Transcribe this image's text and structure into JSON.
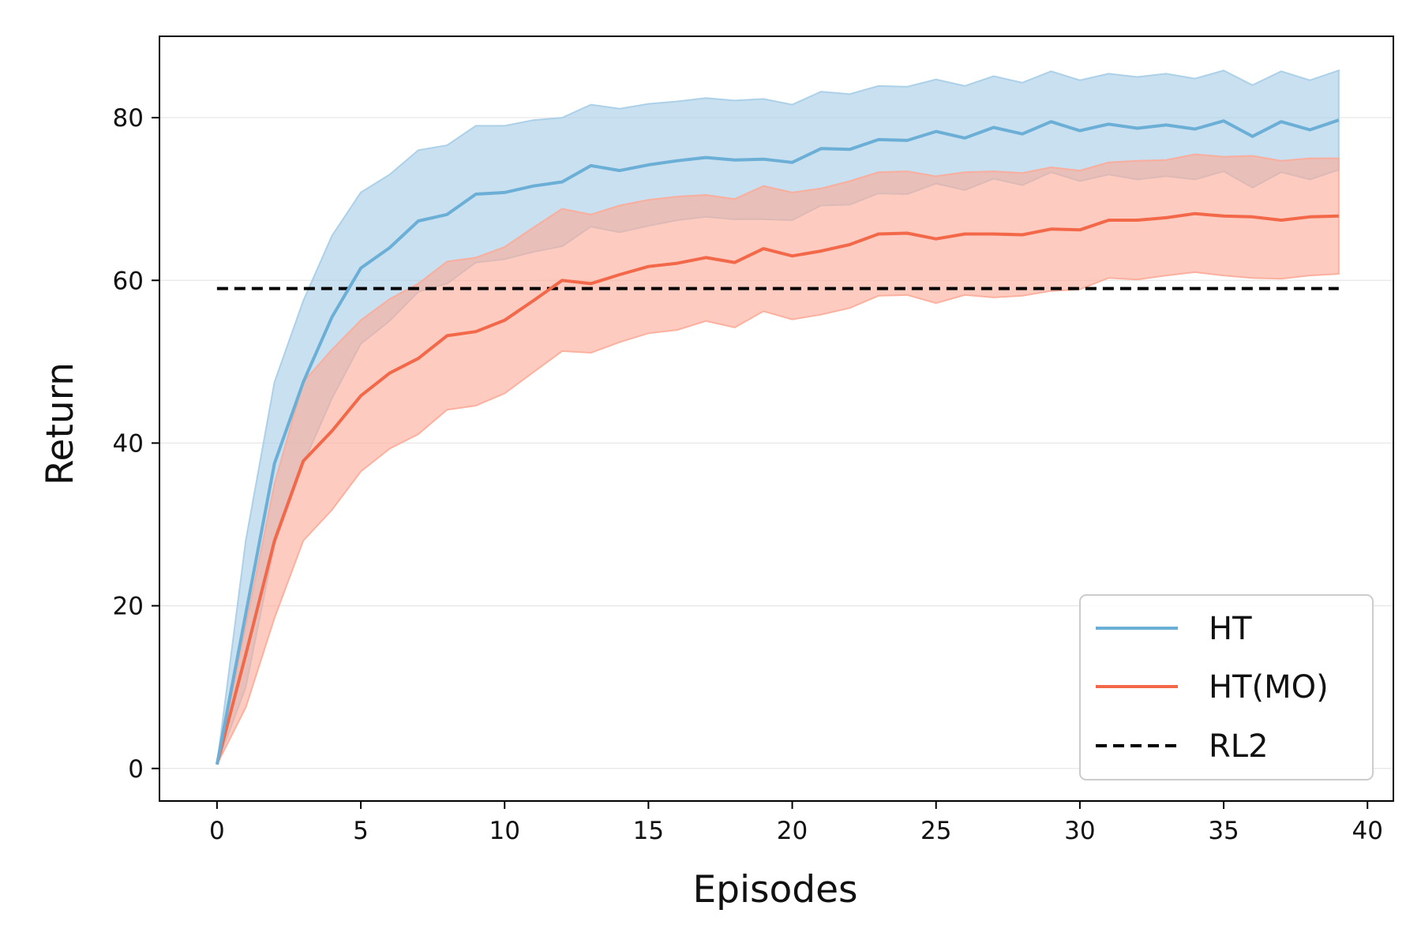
{
  "chart_data": {
    "type": "line",
    "title": "",
    "xlabel": "Episodes",
    "ylabel": "Return",
    "xlim": [
      -2,
      40.9
    ],
    "ylim": [
      -4,
      90
    ],
    "xticks": [
      0,
      5,
      10,
      15,
      20,
      25,
      30,
      35,
      40
    ],
    "yticks": [
      0,
      20,
      40,
      60,
      80
    ],
    "grid": "horizontal, faint",
    "legend_position": "bottom-right",
    "x": [
      0,
      1,
      2,
      3,
      4,
      5,
      6,
      7,
      8,
      9,
      10,
      11,
      12,
      13,
      14,
      15,
      16,
      17,
      18,
      19,
      20,
      21,
      22,
      23,
      24,
      25,
      26,
      27,
      28,
      29,
      30,
      31,
      32,
      33,
      34,
      35,
      36,
      37,
      38,
      39
    ],
    "series": [
      {
        "name": "HT",
        "color": "#6baed6",
        "band_color": "#a6cde7",
        "style": "solid",
        "values": [
          0.5,
          19,
          37.5,
          47.5,
          55.5,
          61.5,
          64,
          67.3,
          68.1,
          70.6,
          70.8,
          71.6,
          72.1,
          74.1,
          73.5,
          74.2,
          74.7,
          75.1,
          74.8,
          74.9,
          74.5,
          76.2,
          76.1,
          77.3,
          77.2,
          78.3,
          77.5,
          78.8,
          78.0,
          79.5,
          78.4,
          79.2,
          78.7,
          79.1,
          78.6,
          79.6,
          77.7,
          79.5,
          78.5,
          79.7
        ],
        "upper": [
          0.5,
          28,
          47.5,
          57.5,
          65.5,
          70.8,
          73,
          76,
          76.6,
          79,
          79,
          79.7,
          80,
          81.6,
          81.1,
          81.7,
          82,
          82.4,
          82.1,
          82.3,
          81.6,
          83.2,
          82.9,
          83.9,
          83.8,
          84.7,
          83.9,
          85.1,
          84.3,
          85.7,
          84.6,
          85.4,
          85.0,
          85.4,
          84.8,
          85.8,
          84.0,
          85.7,
          84.6,
          85.8
        ],
        "lower": [
          0.5,
          10,
          27.5,
          37.5,
          45.5,
          52.2,
          55,
          58.6,
          59.6,
          62.2,
          62.6,
          63.5,
          64.2,
          66.6,
          65.9,
          66.7,
          67.4,
          67.8,
          67.5,
          67.5,
          67.4,
          69.2,
          69.3,
          70.7,
          70.6,
          71.9,
          71.1,
          72.5,
          71.7,
          73.3,
          72.2,
          73.0,
          72.4,
          72.8,
          72.4,
          73.4,
          71.4,
          73.3,
          72.4,
          73.6
        ]
      },
      {
        "name": "HT(MO)",
        "color": "#f26849",
        "band_color": "#fcab98",
        "style": "solid",
        "values": [
          0.5,
          14,
          28,
          37.8,
          41.5,
          45.8,
          48.6,
          50.4,
          53.2,
          53.7,
          55.1,
          57.5,
          60,
          59.6,
          60.7,
          61.7,
          62.1,
          62.8,
          62.2,
          63.9,
          63.0,
          63.6,
          64.4,
          65.7,
          65.8,
          65.1,
          65.7,
          65.7,
          65.6,
          66.3,
          66.2,
          67.4,
          67.4,
          67.7,
          68.2,
          67.9,
          67.8,
          67.4,
          67.8,
          67.9
        ],
        "upper": [
          0.5,
          17.5,
          35,
          47.5,
          51.5,
          55.1,
          57.7,
          59.6,
          62.3,
          62.8,
          64.1,
          66.5,
          68.8,
          68.1,
          69.2,
          69.9,
          70.3,
          70.5,
          70.0,
          71.6,
          70.8,
          71.3,
          72.2,
          73.3,
          73.4,
          72.8,
          73.3,
          73.4,
          73.2,
          73.9,
          73.5,
          74.5,
          74.7,
          74.8,
          75.5,
          75.2,
          75.3,
          74.7,
          75.0,
          75.0
        ],
        "lower": [
          0.5,
          7.5,
          18.5,
          28,
          31.8,
          36.5,
          39.3,
          41.1,
          44.1,
          44.6,
          46.1,
          48.7,
          51.3,
          51.1,
          52.4,
          53.5,
          53.9,
          55,
          54.2,
          56.2,
          55.2,
          55.8,
          56.6,
          58.1,
          58.2,
          57.2,
          58.2,
          57.9,
          58.1,
          58.7,
          58.9,
          60.3,
          60.1,
          60.6,
          61.0,
          60.6,
          60.3,
          60.2,
          60.6,
          60.8
        ]
      },
      {
        "name": "RL2",
        "color": "#000000",
        "style": "dashed",
        "x_range": [
          0,
          39
        ],
        "value": 59
      }
    ]
  }
}
